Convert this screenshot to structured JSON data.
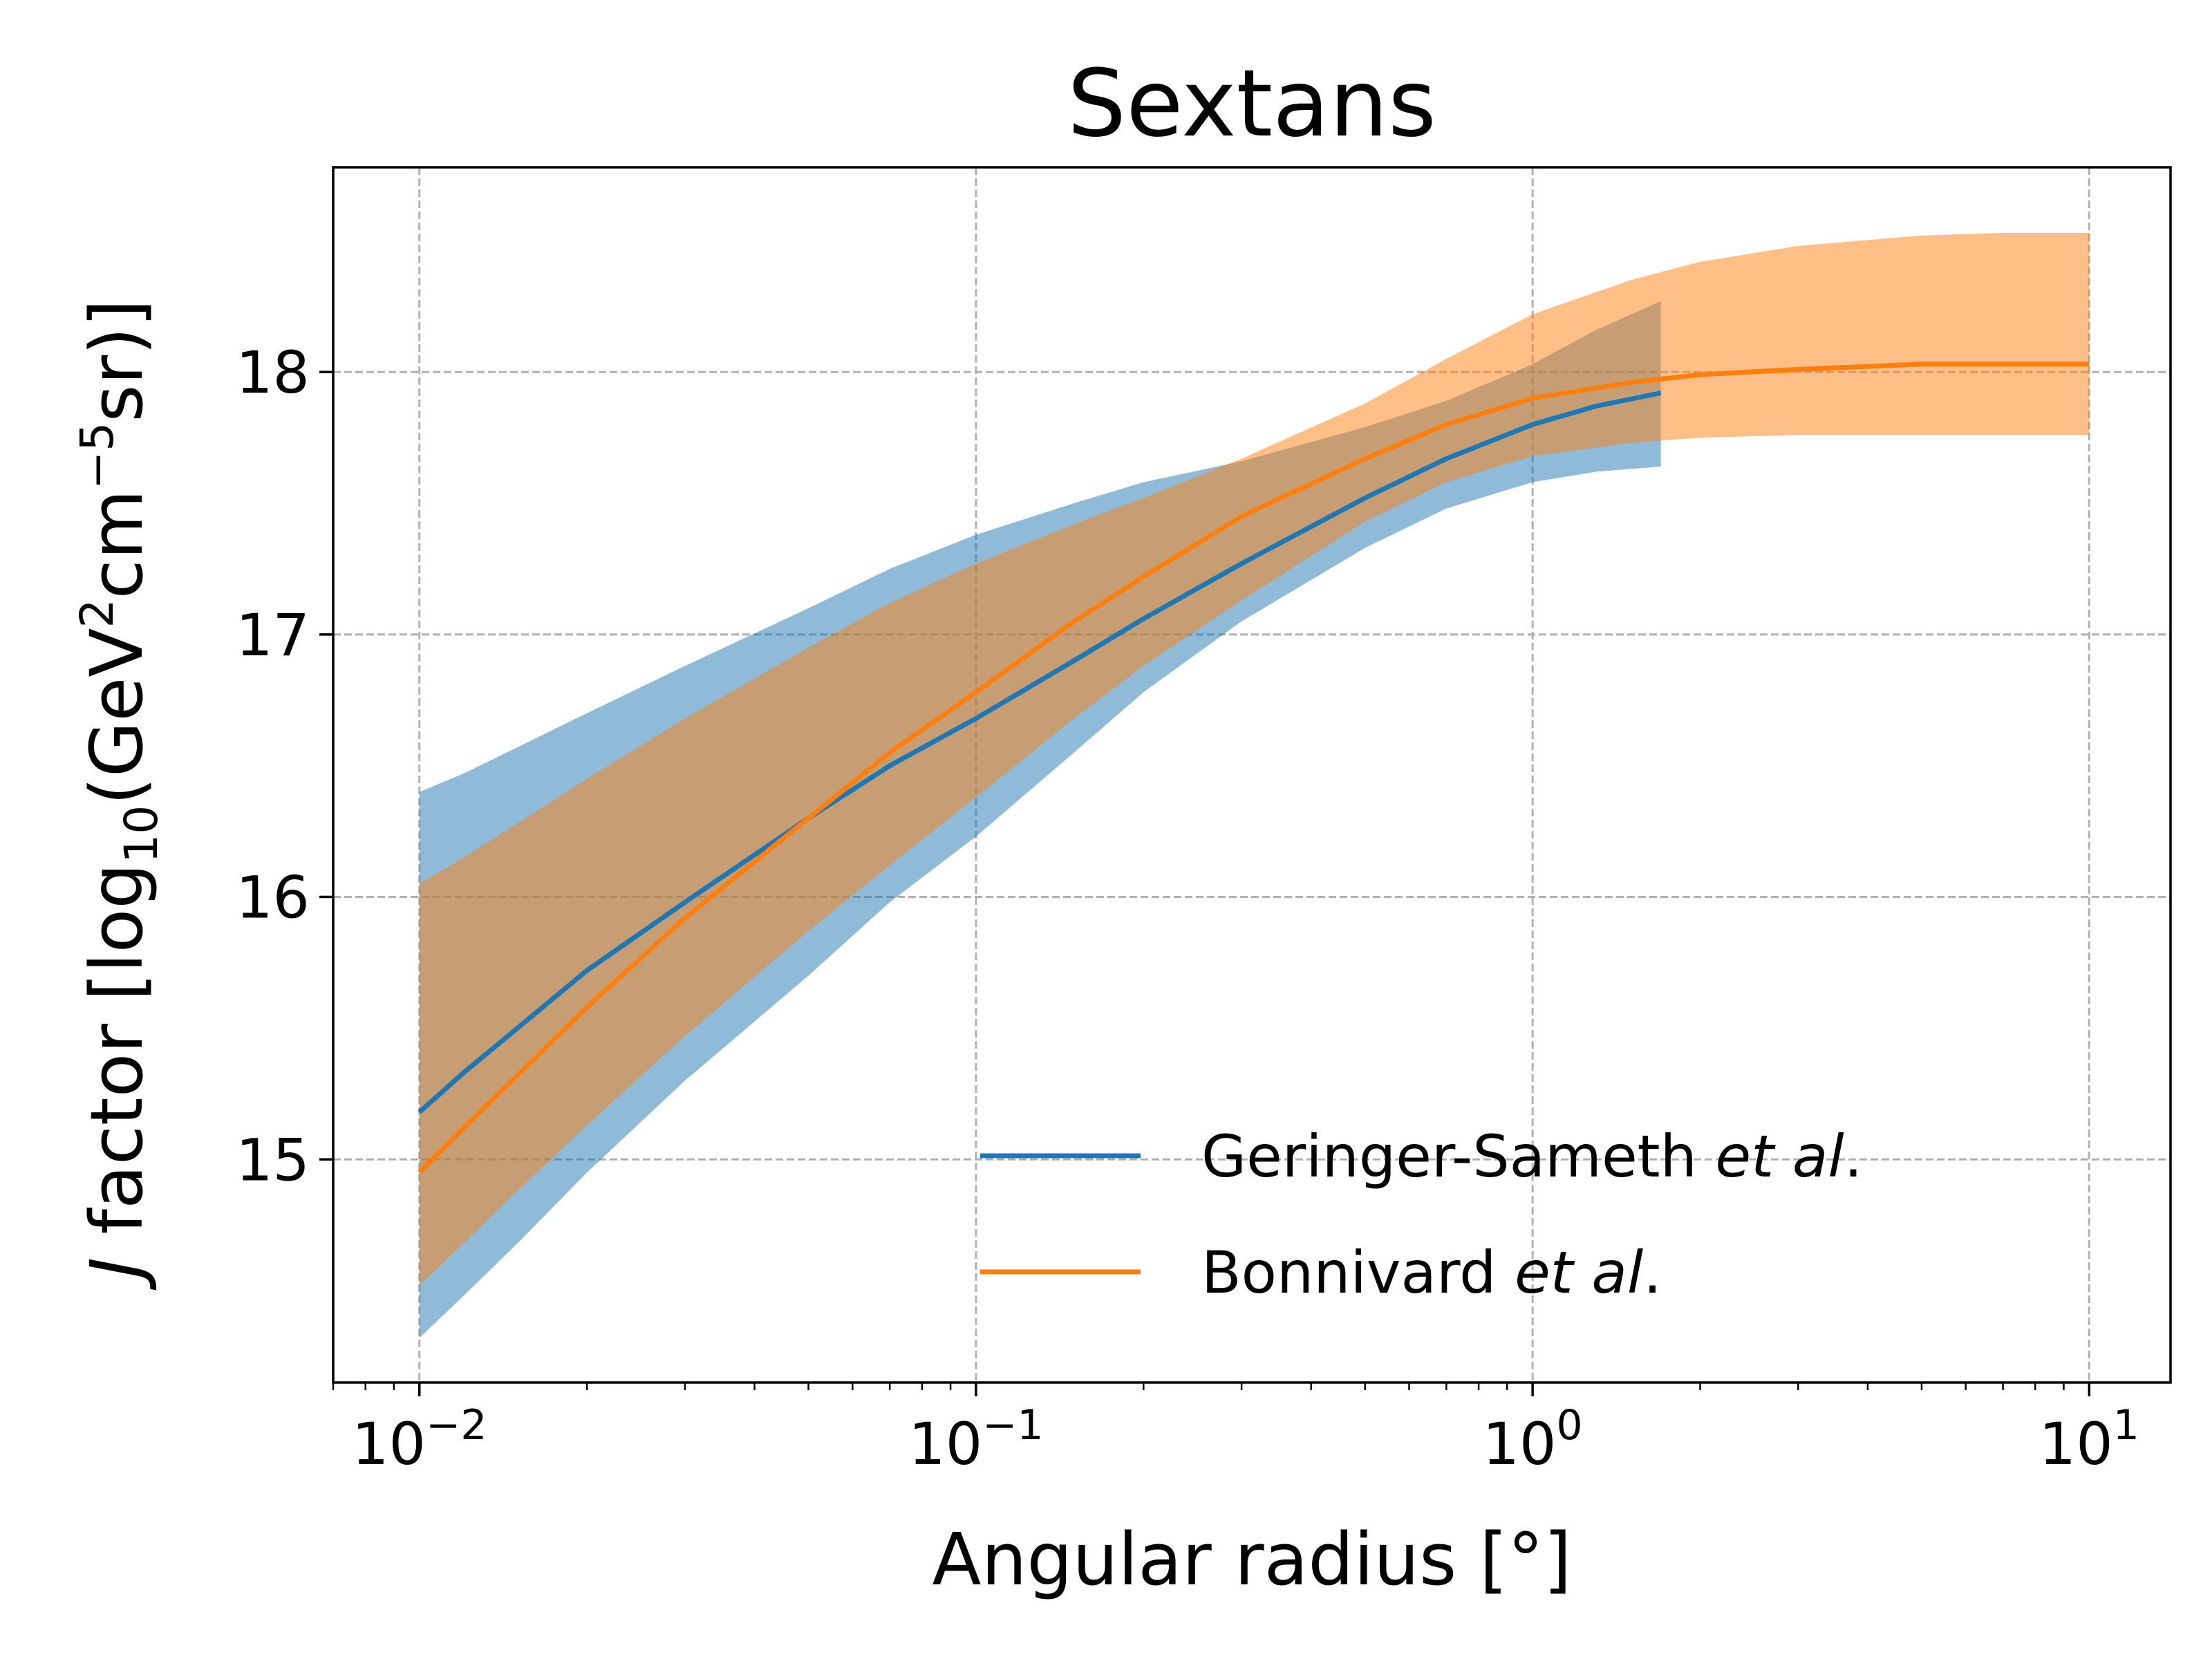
{
  "chart_data": {
    "type": "line",
    "title": "Sextans",
    "xlabel": "Angular radius [°]",
    "ylabel": {
      "prefix_italic": "J",
      "prefix": " factor [log",
      "sub": "10",
      "mid1": "(GeV",
      "sup1": "2",
      "mid2": "cm",
      "sup2": "−5",
      "suffix": "sr)]"
    },
    "xscale": "log",
    "xlim": [
      0.007,
      14
    ],
    "ylim": [
      14.15,
      18.78
    ],
    "grid": true,
    "legend_position": "lower-right",
    "x_ticks": [
      {
        "value": 0.01,
        "base": "10",
        "exp": "−2"
      },
      {
        "value": 0.1,
        "base": "10",
        "exp": "−1"
      },
      {
        "value": 1,
        "base": "10",
        "exp": "0"
      },
      {
        "value": 10,
        "base": "10",
        "exp": "1"
      }
    ],
    "y_ticks": [
      {
        "value": 15,
        "label": "15"
      },
      {
        "value": 16,
        "label": "16"
      },
      {
        "value": 17,
        "label": "17"
      },
      {
        "value": 18,
        "label": "18"
      }
    ],
    "series": [
      {
        "name": "Geringer-Sameth",
        "name_suffix_italic": "et al",
        "name_suffix": ".",
        "color": "#1f77b4",
        "band_color": "#1f77b4",
        "band_opacity": 0.5,
        "x": [
          0.01,
          0.012,
          0.015,
          0.02,
          0.03,
          0.05,
          0.07,
          0.1,
          0.15,
          0.2,
          0.3,
          0.5,
          0.7,
          1.0,
          1.3,
          1.7
        ],
        "y": [
          15.18,
          15.33,
          15.5,
          15.72,
          15.98,
          16.3,
          16.5,
          16.68,
          16.9,
          17.06,
          17.27,
          17.52,
          17.67,
          17.8,
          17.87,
          17.92
        ],
        "upper": [
          16.4,
          16.47,
          16.57,
          16.7,
          16.88,
          17.1,
          17.25,
          17.38,
          17.5,
          17.58,
          17.66,
          17.79,
          17.89,
          18.03,
          18.16,
          18.27
        ],
        "lower": [
          14.32,
          14.48,
          14.68,
          14.95,
          15.3,
          15.7,
          15.98,
          16.23,
          16.55,
          16.78,
          17.05,
          17.33,
          17.48,
          17.58,
          17.62,
          17.64
        ]
      },
      {
        "name": "Bonnivard",
        "name_suffix_italic": "et al",
        "name_suffix": ".",
        "color": "#ff7f0e",
        "band_color": "#ff7f0e",
        "band_opacity": 0.5,
        "x": [
          0.01,
          0.012,
          0.015,
          0.02,
          0.03,
          0.05,
          0.07,
          0.1,
          0.15,
          0.2,
          0.3,
          0.5,
          0.7,
          1.0,
          1.5,
          2.0,
          3.0,
          5.0,
          7.0,
          10.0
        ],
        "y": [
          14.95,
          15.12,
          15.32,
          15.58,
          15.92,
          16.3,
          16.55,
          16.78,
          17.05,
          17.22,
          17.45,
          17.67,
          17.8,
          17.9,
          17.96,
          17.99,
          18.01,
          18.03,
          18.03,
          18.03
        ],
        "upper": [
          16.05,
          16.15,
          16.28,
          16.45,
          16.68,
          16.95,
          17.12,
          17.27,
          17.42,
          17.52,
          17.67,
          17.88,
          18.05,
          18.22,
          18.35,
          18.42,
          18.48,
          18.52,
          18.53,
          18.53
        ],
        "lower": [
          14.52,
          14.68,
          14.88,
          15.13,
          15.47,
          15.87,
          16.12,
          16.38,
          16.68,
          16.88,
          17.13,
          17.43,
          17.58,
          17.68,
          17.73,
          17.75,
          17.76,
          17.76,
          17.76,
          17.76
        ]
      }
    ]
  }
}
